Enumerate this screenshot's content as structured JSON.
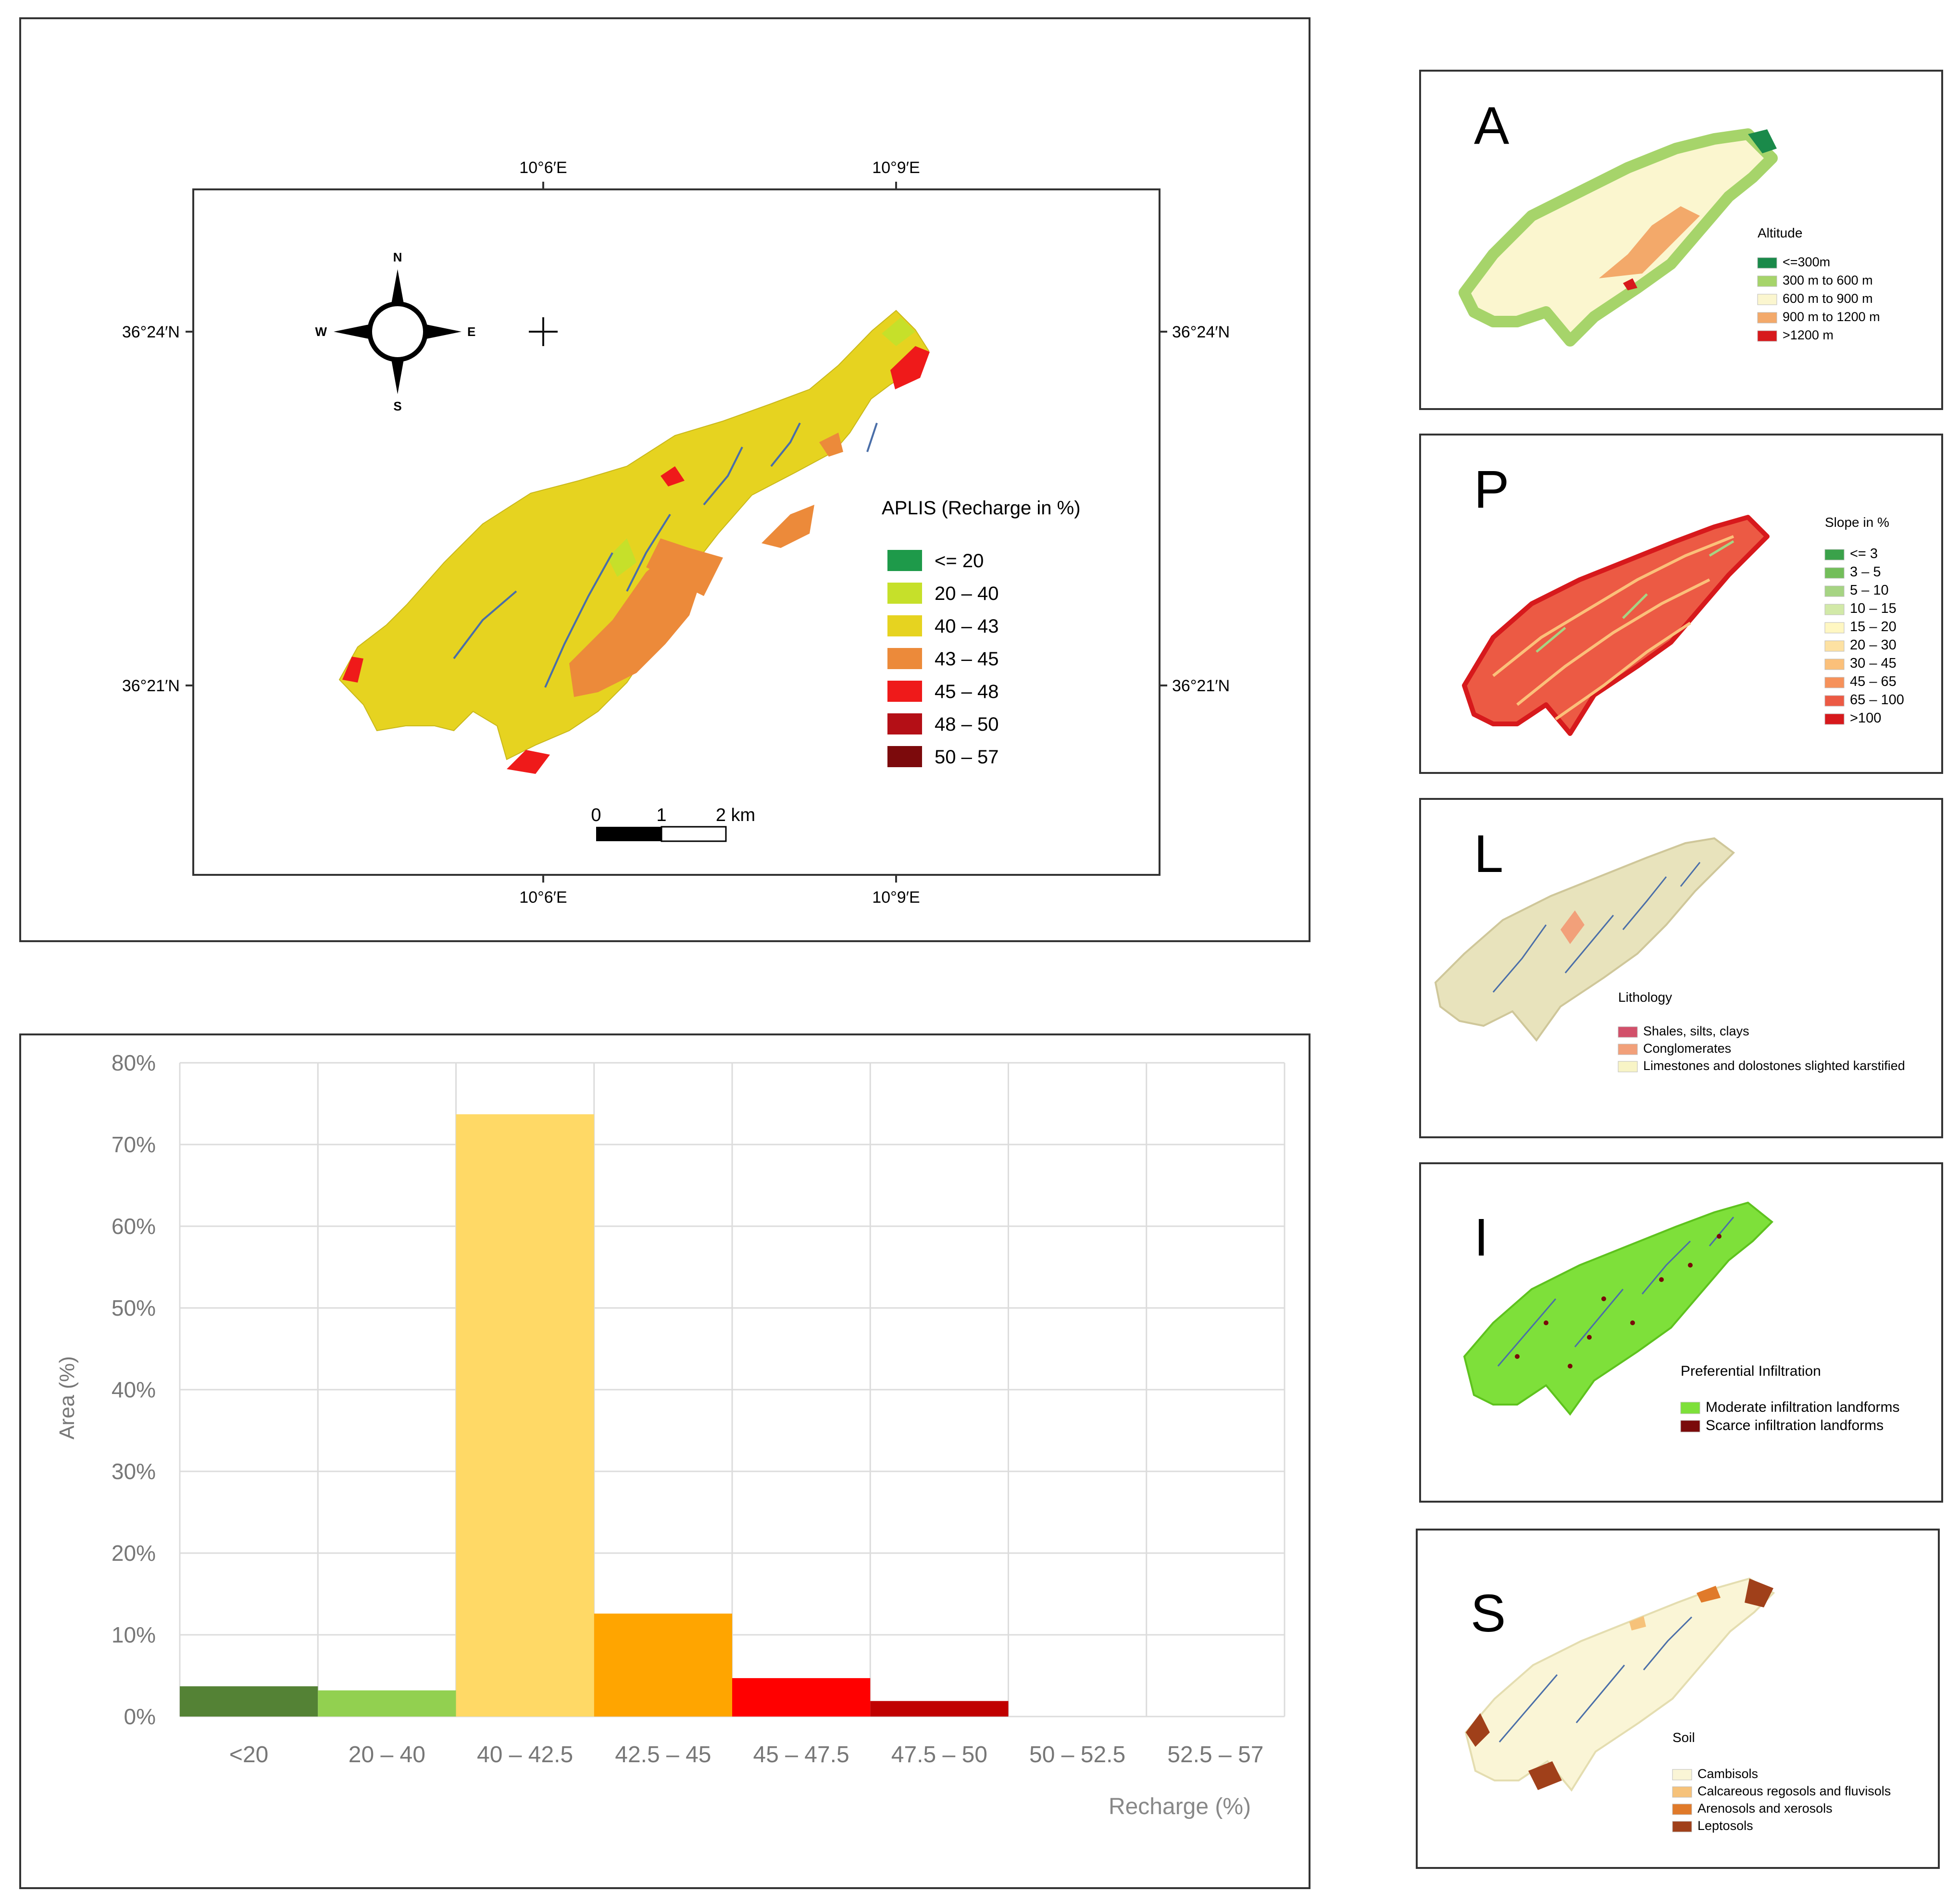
{
  "main_map": {
    "coords": {
      "lon_left": "10°6′E",
      "lon_right": "10°9′E",
      "lat_top": "36°24′N",
      "lat_bottom": "36°21′N"
    },
    "compass": {
      "n": "N",
      "s": "S",
      "e": "E",
      "w": "W"
    },
    "legend": {
      "title": "APLIS (Recharge in %)",
      "classes": [
        {
          "label": "<= 20",
          "color": "#1e9a4a"
        },
        {
          "label": "20 – 40",
          "color": "#c6e02a"
        },
        {
          "label": "40 – 43",
          "color": "#e6d320"
        },
        {
          "label": "43 – 45",
          "color": "#ec8a3a"
        },
        {
          "label": "45 – 48",
          "color": "#ef1a1a"
        },
        {
          "label": "48 – 50",
          "color": "#b40f16"
        },
        {
          "label": "50 – 57",
          "color": "#7c0a0c"
        }
      ]
    },
    "scale": {
      "l0": "0",
      "l1": "1",
      "l2": "2 km"
    }
  },
  "chart_data": {
    "type": "bar",
    "categories": [
      "<20",
      "20 – 40",
      "40 – 42.5",
      "42.5 – 45",
      "45 – 47.5",
      "47.5 – 50",
      "50 – 52.5",
      "52.5 – 57"
    ],
    "values": [
      3.7,
      3.2,
      73.7,
      12.6,
      4.7,
      1.9,
      0,
      0
    ],
    "colors": [
      "#548235",
      "#92d050",
      "#ffd966",
      "#ffa500",
      "#ff0000",
      "#c00000",
      "#cccccc",
      "#cccccc"
    ],
    "ylim": [
      0,
      80
    ],
    "yticks": [
      "0%",
      "10%",
      "20%",
      "30%",
      "40%",
      "50%",
      "60%",
      "70%",
      "80%"
    ],
    "xlabel": "Recharge (%)",
    "ylabel": "Area (%)",
    "grid": true
  },
  "subpanels": {
    "A": {
      "letter": "A",
      "legend_title": "Altitude",
      "items": [
        {
          "label": "<=300m",
          "color": "#1a8a4a"
        },
        {
          "label": "300 m to 600 m",
          "color": "#a6d46a"
        },
        {
          "label": "600 m to 900 m",
          "color": "#fbf6cf"
        },
        {
          "label": "900 m to 1200 m",
          "color": "#f3a96a"
        },
        {
          "label": ">1200 m",
          "color": "#d7191c"
        }
      ]
    },
    "P": {
      "letter": "P",
      "legend_title": "Slope  in %",
      "items": [
        {
          "label": "<= 3",
          "color": "#3aa24a"
        },
        {
          "label": "3 – 5",
          "color": "#73be5a"
        },
        {
          "label": "5 – 10",
          "color": "#a6d483"
        },
        {
          "label": "10 – 15",
          "color": "#d2e9a8"
        },
        {
          "label": "15 – 20",
          "color": "#fff7c2"
        },
        {
          "label": "20 – 30",
          "color": "#fde1a2"
        },
        {
          "label": "30 – 45",
          "color": "#fbc07a"
        },
        {
          "label": "45 – 65",
          "color": "#f6915a"
        },
        {
          "label": "65 – 100",
          "color": "#ec5a44"
        },
        {
          "label": ">100",
          "color": "#d7191c"
        }
      ]
    },
    "L": {
      "letter": "L",
      "legend_title": "Lithology",
      "items": [
        {
          "label": "Shales, silts, clays",
          "color": "#d2506a"
        },
        {
          "label": "Conglomerates",
          "color": "#f2a07a"
        },
        {
          "label": "Limestones and dolostones slighted karstified",
          "color": "#f8f4c6"
        }
      ]
    },
    "I": {
      "letter": "I",
      "legend_title": "Preferential Infiltration",
      "items": [
        {
          "label": "Moderate infiltration landforms",
          "color": "#7ee03a"
        },
        {
          "label": "Scarce infiltration landforms",
          "color": "#7a0a0a"
        }
      ]
    },
    "S": {
      "letter": "S",
      "legend_title": "Soil",
      "items": [
        {
          "label": "Cambisols",
          "color": "#faf5d6"
        },
        {
          "label": "Calcareous regosols and fluvisols",
          "color": "#f6c27a"
        },
        {
          "label": "Arenosols and xerosols",
          "color": "#e07a2a"
        },
        {
          "label": "Leptosols",
          "color": "#a0401a"
        }
      ]
    }
  }
}
